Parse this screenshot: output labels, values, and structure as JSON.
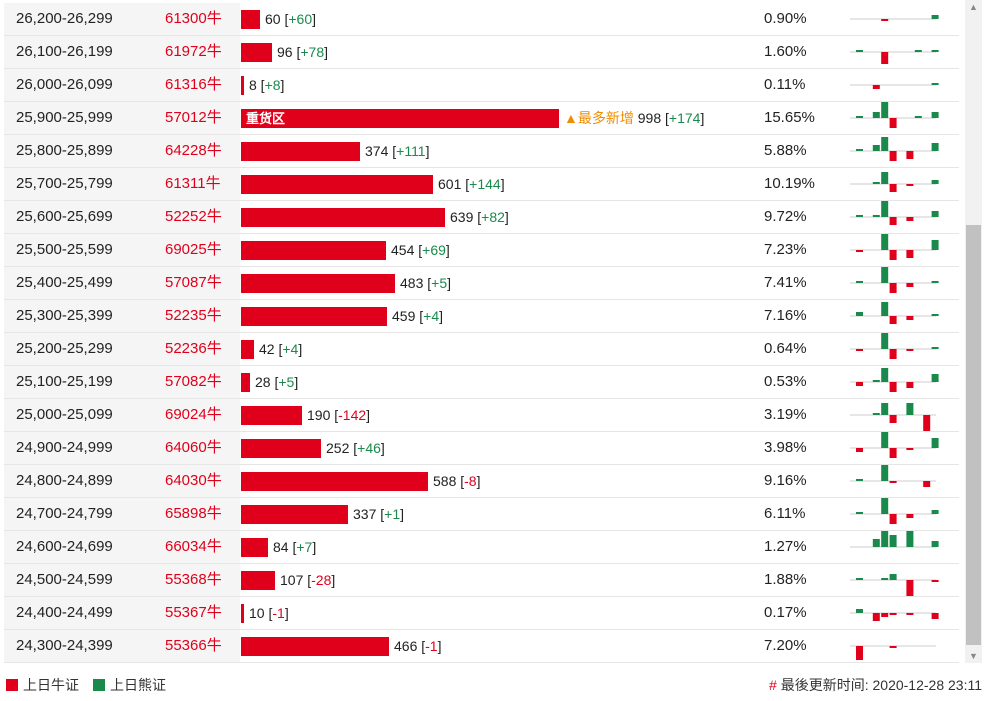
{
  "colors": {
    "bull": "#e0001b",
    "bear": "#1a8a4c",
    "highlight": "#f08c00"
  },
  "max_bar_value": 998,
  "rows": [
    {
      "range": "26,200-26,299",
      "code": "61300牛",
      "value": 60,
      "change": "+60",
      "pct": "0.90%",
      "spark": [
        0,
        0,
        0,
        -1,
        0,
        0,
        0,
        0,
        0,
        2
      ]
    },
    {
      "range": "26,100-26,199",
      "code": "61972牛",
      "value": 96,
      "change": "+78",
      "pct": "1.60%",
      "spark": [
        1,
        0,
        0,
        -6,
        0,
        0,
        0,
        1,
        0,
        1
      ]
    },
    {
      "range": "26,000-26,099",
      "code": "61316牛",
      "value": 8,
      "change": "+8",
      "pct": "0.11%",
      "spark": [
        0,
        0,
        -2,
        0,
        0,
        0,
        0,
        0,
        0,
        1
      ]
    },
    {
      "range": "25,900-25,999",
      "code": "57012牛",
      "value": 998,
      "change": "+174",
      "pct": "15.65%",
      "heavy": "重货区",
      "most_new": "▲最多新增",
      "spark": [
        1,
        0,
        3,
        8,
        -5,
        0,
        0,
        1,
        0,
        3
      ]
    },
    {
      "range": "25,800-25,899",
      "code": "64228牛",
      "value": 374,
      "change": "+111",
      "pct": "5.88%",
      "spark": [
        1,
        0,
        3,
        7,
        -5,
        0,
        -4,
        0,
        0,
        4
      ]
    },
    {
      "range": "25,700-25,799",
      "code": "61311牛",
      "value": 601,
      "change": "+144",
      "pct": "10.19%",
      "spark": [
        0,
        0,
        1,
        6,
        -4,
        0,
        -1,
        0,
        0,
        2
      ]
    },
    {
      "range": "25,600-25,699",
      "code": "52252牛",
      "value": 639,
      "change": "+82",
      "pct": "9.72%",
      "spark": [
        1,
        0,
        1,
        8,
        -4,
        0,
        -2,
        0,
        0,
        3
      ]
    },
    {
      "range": "25,500-25,599",
      "code": "69025牛",
      "value": 454,
      "change": "+69",
      "pct": "7.23%",
      "spark": [
        -1,
        0,
        0,
        8,
        -5,
        0,
        -4,
        0,
        0,
        5
      ]
    },
    {
      "range": "25,400-25,499",
      "code": "57087牛",
      "value": 483,
      "change": "+5",
      "pct": "7.41%",
      "spark": [
        1,
        0,
        0,
        8,
        -5,
        0,
        -2,
        0,
        0,
        1
      ]
    },
    {
      "range": "25,300-25,399",
      "code": "52235牛",
      "value": 459,
      "change": "+4",
      "pct": "7.16%",
      "spark": [
        2,
        0,
        0,
        7,
        -4,
        0,
        -2,
        0,
        0,
        1
      ]
    },
    {
      "range": "25,200-25,299",
      "code": "52236牛",
      "value": 42,
      "change": "+4",
      "pct": "0.64%",
      "spark": [
        -1,
        0,
        0,
        8,
        -5,
        0,
        -1,
        0,
        0,
        1
      ]
    },
    {
      "range": "25,100-25,199",
      "code": "57082牛",
      "value": 28,
      "change": "+5",
      "pct": "0.53%",
      "spark": [
        -2,
        0,
        1,
        7,
        -5,
        0,
        -3,
        0,
        0,
        4
      ]
    },
    {
      "range": "25,000-25,099",
      "code": "69024牛",
      "value": 190,
      "change": "-142",
      "pct": "3.19%",
      "spark": [
        0,
        0,
        1,
        6,
        -4,
        0,
        6,
        0,
        -9,
        0
      ]
    },
    {
      "range": "24,900-24,999",
      "code": "64060牛",
      "value": 252,
      "change": "+46",
      "pct": "3.98%",
      "spark": [
        -2,
        0,
        0,
        8,
        -5,
        0,
        -1,
        0,
        0,
        5
      ]
    },
    {
      "range": "24,800-24,899",
      "code": "64030牛",
      "value": 588,
      "change": "-8",
      "pct": "9.16%",
      "spark": [
        1,
        0,
        0,
        8,
        -1,
        0,
        0,
        0,
        -3,
        0
      ]
    },
    {
      "range": "24,700-24,799",
      "code": "65898牛",
      "value": 337,
      "change": "+1",
      "pct": "6.11%",
      "spark": [
        1,
        0,
        0,
        8,
        -5,
        0,
        -2,
        0,
        0,
        2
      ]
    },
    {
      "range": "24,600-24,699",
      "code": "66034牛",
      "value": 84,
      "change": "+7",
      "pct": "1.27%",
      "spark": [
        0,
        0,
        4,
        8,
        6,
        0,
        9,
        0,
        0,
        3
      ]
    },
    {
      "range": "24,500-24,599",
      "code": "55368牛",
      "value": 107,
      "change": "-28",
      "pct": "1.88%",
      "spark": [
        1,
        0,
        0,
        1,
        3,
        0,
        -8,
        0,
        0,
        -1
      ]
    },
    {
      "range": "24,400-24,499",
      "code": "55367牛",
      "value": 10,
      "change": "-1",
      "pct": "0.17%",
      "spark": [
        2,
        0,
        -4,
        -2,
        -1,
        0,
        -1,
        0,
        0,
        -3
      ]
    },
    {
      "range": "24,300-24,399",
      "code": "55366牛",
      "value": 466,
      "change": "-1",
      "pct": "7.20%",
      "spark": [
        -7,
        0,
        0,
        0,
        -1,
        0,
        0,
        0,
        0,
        0
      ]
    }
  ],
  "legend": {
    "bull_label": "上日牛证",
    "bear_label": "上日熊证"
  },
  "update": {
    "hash": "#",
    "label": "最後更新时间: ",
    "time": "2020-12-28 23:11"
  }
}
